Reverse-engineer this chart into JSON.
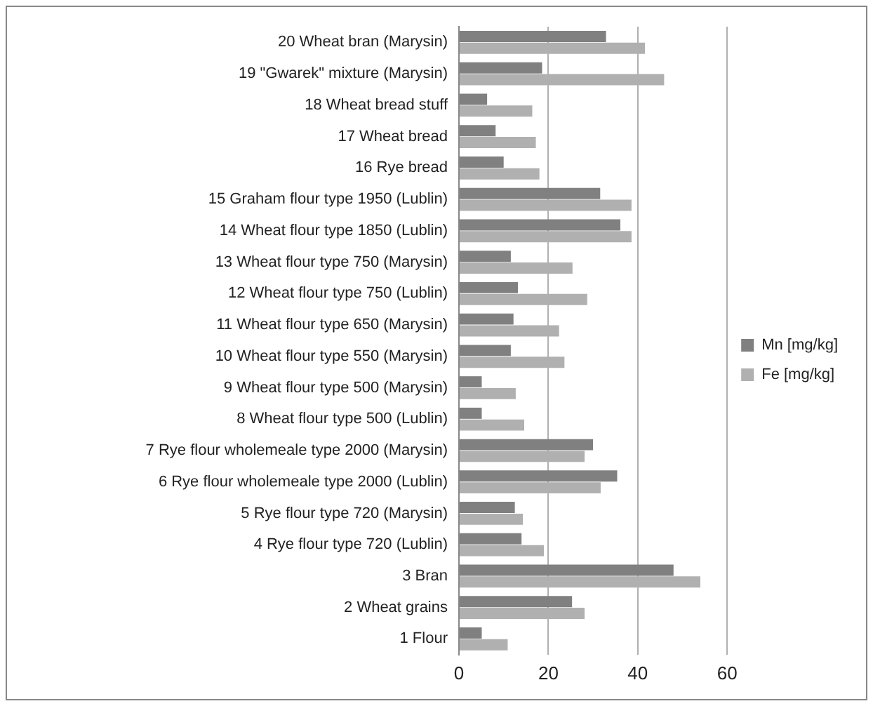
{
  "chart_data": {
    "type": "bar",
    "orientation": "horizontal",
    "categories": [
      "20 Wheat bran (Marysin)",
      "19 \"Gwarek\" mixture (Marysin)",
      "18 Wheat bread stuff",
      "17 Wheat bread",
      "16 Rye bread",
      "15 Graham flour type 1950 (Lublin)",
      "14 Wheat flour type 1850 (Lublin)",
      "13 Wheat flour type 750 (Marysin)",
      "12 Wheat flour type 750 (Lublin)",
      "11 Wheat flour type 650 (Marysin)",
      "10 Wheat flour type 550 (Marysin)",
      "9 Wheat flour type 500 (Marysin)",
      "8 Wheat flour type 500 (Lublin)",
      "7 Rye flour wholemeale type 2000 (Marysin)",
      "6 Rye flour wholemeale type 2000 (Lublin)",
      "5 Rye flour type 720 (Marysin)",
      "4 Rye flour type 720 (Lublin)",
      "3 Bran",
      "2 Wheat grains",
      "1 Flour"
    ],
    "series": [
      {
        "name": "Mn [mg/kg]",
        "color": "#808080",
        "values": [
          32.9,
          18.6,
          6.3,
          8.2,
          10,
          31.6,
          36.1,
          11.6,
          13.2,
          12.2,
          11.6,
          5.1,
          5.1,
          30,
          35.4,
          12.5,
          14,
          48,
          25.3,
          5.1
        ]
      },
      {
        "name": "Fe [mg/kg]",
        "color": "#b0b0b0",
        "values": [
          41.6,
          45.9,
          16.4,
          17.2,
          18,
          38.6,
          38.6,
          25.4,
          28.7,
          22.4,
          23.6,
          12.7,
          14.6,
          28.1,
          31.7,
          14.3,
          19,
          54,
          28.1,
          10.9
        ]
      }
    ],
    "xlim": [
      0,
      60
    ],
    "xticks": [
      0,
      20,
      40,
      60
    ],
    "grid": "x",
    "legend": "right"
  }
}
